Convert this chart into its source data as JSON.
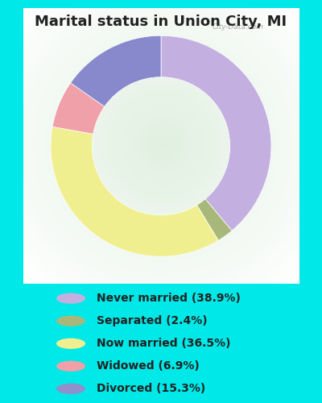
{
  "title": "Marital status in Union City, MI",
  "slices": [
    38.9,
    2.4,
    36.5,
    6.9,
    15.3
  ],
  "labels": [
    "Never married (38.9%)",
    "Separated (2.4%)",
    "Now married (36.5%)",
    "Widowed (6.9%)",
    "Divorced (15.3%)"
  ],
  "pie_colors": [
    "#c4b0e0",
    "#a8b87a",
    "#f0ef90",
    "#f0a0a8",
    "#8888cc"
  ],
  "legend_colors": [
    "#c4b0e0",
    "#a8b87a",
    "#f0ef90",
    "#f0a0a8",
    "#9090cc"
  ],
  "bg_color": "#00e8e8",
  "title_color": "#222222",
  "legend_text_color": "#222222",
  "title_fontsize": 13,
  "legend_fontsize": 10,
  "start_angle": 90,
  "watermark": "City-Data.com"
}
